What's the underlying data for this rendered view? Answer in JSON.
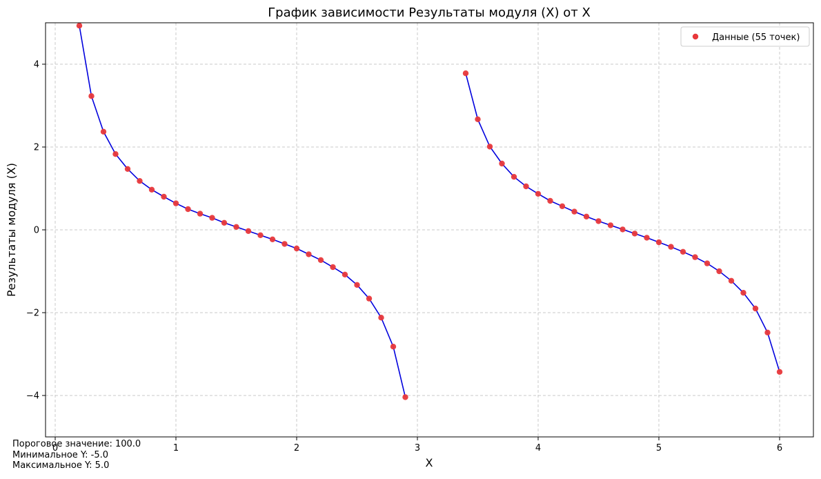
{
  "chart_data": {
    "type": "line",
    "title": "График зависимости Результаты модуля (X) от X",
    "xlabel": "X",
    "ylabel": "Результаты модуля (X)",
    "xlim": [
      -0.08,
      6.28
    ],
    "ylim": [
      -5,
      5
    ],
    "xticks": [
      0,
      1,
      2,
      3,
      4,
      5,
      6
    ],
    "yticks": [
      -4,
      -2,
      0,
      2,
      4
    ],
    "grid": true,
    "legend": {
      "label": "Данные (55 точек)",
      "placement": "top-right"
    },
    "colors": {
      "line": "#0000dd",
      "marker": "#e8383b",
      "grid": "#c8c8c8"
    },
    "segments": [
      {
        "x": [
          0.2,
          0.3,
          0.4,
          0.5,
          0.6,
          0.7,
          0.8,
          0.9,
          1.0,
          1.1,
          1.2,
          1.3,
          1.4,
          1.5,
          1.6,
          1.7,
          1.8,
          1.9,
          2.0,
          2.1,
          2.2,
          2.3,
          2.4,
          2.5,
          2.6,
          2.7,
          2.8,
          2.9
        ],
        "y": [
          4.93,
          3.23,
          2.37,
          1.83,
          1.47,
          1.18,
          0.97,
          0.8,
          0.64,
          0.5,
          0.39,
          0.29,
          0.17,
          0.07,
          -0.03,
          -0.13,
          -0.23,
          -0.34,
          -0.45,
          -0.59,
          -0.73,
          -0.9,
          -1.08,
          -1.33,
          -1.66,
          -2.12,
          -2.82,
          -4.04
        ]
      },
      {
        "x": [
          3.4,
          3.5,
          3.6,
          3.7,
          3.8,
          3.9,
          4.0,
          4.1,
          4.2,
          4.3,
          4.4,
          4.5,
          4.6,
          4.7,
          4.8,
          4.9,
          5.0,
          5.1,
          5.2,
          5.3,
          5.4,
          5.5,
          5.6,
          5.7,
          5.8,
          5.9,
          6.0
        ],
        "y": [
          3.78,
          2.67,
          2.01,
          1.6,
          1.28,
          1.05,
          0.87,
          0.7,
          0.57,
          0.44,
          0.32,
          0.21,
          0.11,
          0.01,
          -0.09,
          -0.19,
          -0.3,
          -0.41,
          -0.53,
          -0.66,
          -0.81,
          -1.0,
          -1.23,
          -1.52,
          -1.9,
          -2.48,
          -3.43
        ]
      }
    ]
  },
  "info": {
    "threshold": "Пороговое значение: 100.0",
    "min_y": "Минимальное Y: -5.0",
    "max_y": "Максимальное Y: 5.0"
  }
}
